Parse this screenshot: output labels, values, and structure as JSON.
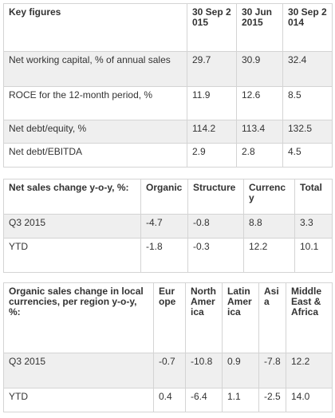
{
  "key_figures": {
    "headers": [
      "Key figures",
      "30 Sep 2015",
      "30 Jun 2015",
      "30 Sep 2014"
    ],
    "rows": [
      [
        "Net working capital, % of annual sales",
        "29.7",
        "30.9",
        "32.4"
      ],
      [
        "ROCE for the 12-month period, %",
        "11.9",
        "12.6",
        "8.5"
      ],
      [
        "Net debt/equity, %",
        "114.2",
        "113.4",
        "132.5"
      ],
      [
        "Net debt/EBITDA",
        "2.9",
        "2.8",
        "4.5"
      ]
    ]
  },
  "net_sales_change": {
    "headers": [
      "Net sales change y-o-y, %:",
      "Organic",
      "Structure",
      "Currency",
      "Total"
    ],
    "rows": [
      [
        "Q3 2015",
        "-4.7",
        "-0.8",
        "8.8",
        "3.3"
      ],
      [
        "YTD",
        "-1.8",
        "-0.3",
        "12.2",
        "10.1"
      ]
    ]
  },
  "organic_sales_change": {
    "headers": [
      "Organic sales change in local currencies, per region y-o-y, %:",
      "Europe",
      "North America",
      "Latin America",
      "Asia",
      "Middle East & Africa"
    ],
    "rows": [
      [
        "Q3 2015",
        "-0.7",
        "-10.8",
        "0.9",
        "-7.8",
        "12.2"
      ],
      [
        "YTD",
        "0.4",
        "-6.4",
        "1.1",
        "-2.5",
        "14.0"
      ]
    ]
  }
}
